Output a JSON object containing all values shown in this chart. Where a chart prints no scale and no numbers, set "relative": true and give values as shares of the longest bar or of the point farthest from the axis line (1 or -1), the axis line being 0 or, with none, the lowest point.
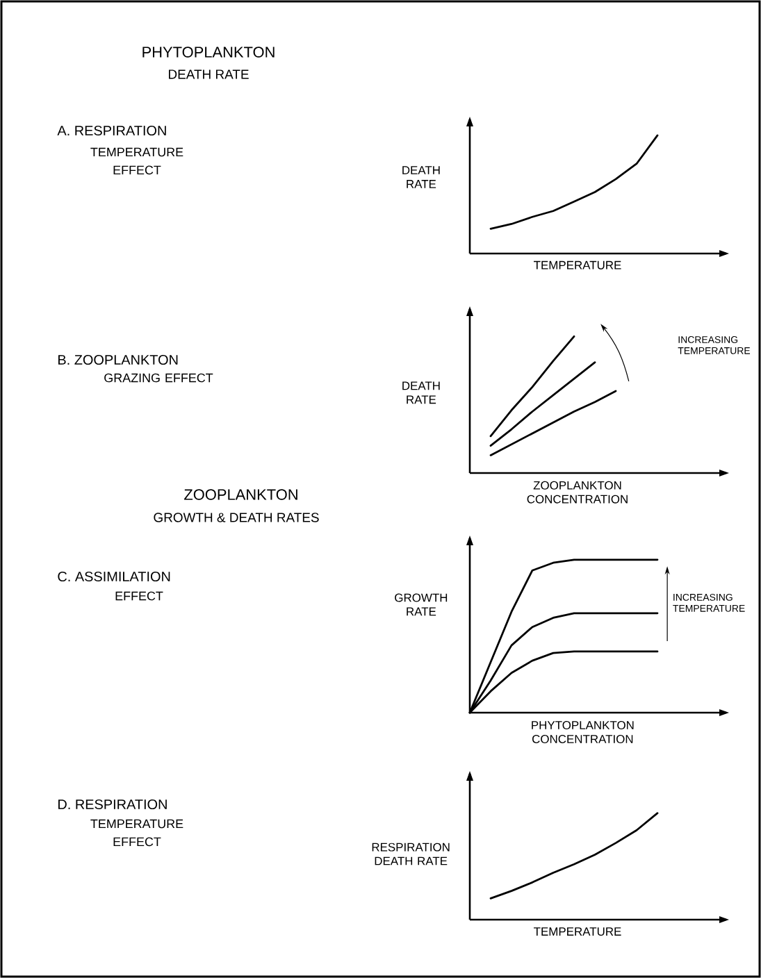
{
  "chart_data": [
    {
      "type": "line",
      "relative": true,
      "tick_labels": false,
      "xlabel": "TEMPERATURE",
      "ylabel": "DEATH RATE",
      "annotations": [
        "PHYTOPLANKTON",
        "DEATH RATE",
        "A. RESPIRATION",
        "TEMPERATURE EFFECT"
      ],
      "categories": [
        null,
        null,
        null,
        null,
        null,
        null,
        null,
        null,
        null,
        null,
        null,
        null,
        null
      ],
      "series": [
        {
          "color": "#000000",
          "values": [
            null,
            0.21,
            0.25,
            0.31,
            0.36,
            0.44,
            0.52,
            0.63,
            0.76,
            1.0,
            null,
            null,
            null
          ]
        }
      ]
    },
    {
      "type": "line",
      "relative": true,
      "tick_labels": false,
      "xlabel": "ZOOPLANKTON CONCENTRATION",
      "ylabel": "DEATH RATE",
      "annotations": [
        "B. ZOOPLANKTON",
        "GRAZING EFFECT",
        "INCREASING TEMPERATURE"
      ],
      "categories": [
        null,
        null,
        null,
        null,
        null,
        null,
        null,
        null,
        null,
        null,
        null,
        null,
        null
      ],
      "series": [
        {
          "color": "#000000",
          "values": [
            null,
            0.27,
            0.46,
            0.63,
            0.82,
            1.0,
            null,
            null,
            null,
            null,
            null,
            null,
            null
          ]
        },
        {
          "color": "#000000",
          "values": [
            null,
            0.2,
            0.32,
            0.45,
            0.57,
            0.69,
            0.81,
            null,
            null,
            null,
            null,
            null,
            null
          ]
        },
        {
          "color": "#000000",
          "values": [
            null,
            0.13,
            0.21,
            0.29,
            0.37,
            0.45,
            0.52,
            0.6,
            null,
            null,
            null,
            null,
            null
          ]
        }
      ]
    },
    {
      "type": "line",
      "relative": true,
      "tick_labels": false,
      "xlabel": "PHYTOPLANKTON CONCENTRATION",
      "ylabel": "GROWTH RATE",
      "annotations": [
        "ZOOPLANKTON",
        "GROWTH & DEATH RATES",
        "C. ASSIMILATION",
        "EFFECT",
        "INCREASING TEMPERATURE"
      ],
      "categories": [
        null,
        null,
        null,
        null,
        null,
        null,
        null,
        null,
        null,
        null,
        null,
        null,
        null
      ],
      "series": [
        {
          "color": "#000000",
          "values": [
            0,
            0.33,
            0.66,
            0.93,
            0.98,
            1.0,
            1.0,
            1.0,
            1.0,
            1.0,
            null,
            null,
            null
          ]
        },
        {
          "color": "#000000",
          "values": [
            0,
            0.21,
            0.44,
            0.56,
            0.62,
            0.65,
            0.65,
            0.65,
            0.65,
            0.65,
            null,
            null,
            null
          ]
        },
        {
          "color": "#000000",
          "values": [
            0,
            0.14,
            0.26,
            0.34,
            0.39,
            0.4,
            0.4,
            0.4,
            0.4,
            0.4,
            null,
            null,
            null
          ]
        }
      ]
    },
    {
      "type": "line",
      "relative": true,
      "tick_labels": false,
      "xlabel": "TEMPERATURE",
      "ylabel": "RESPIRATION DEATH RATE",
      "annotations": [
        "D. RESPIRATION",
        "TEMPERATURE EFFECT"
      ],
      "categories": [
        null,
        null,
        null,
        null,
        null,
        null,
        null,
        null,
        null,
        null,
        null,
        null,
        null
      ],
      "series": [
        {
          "color": "#000000",
          "values": [
            null,
            0.2,
            0.27,
            0.35,
            0.44,
            0.52,
            0.61,
            0.72,
            0.84,
            1.0,
            null,
            null,
            null
          ]
        }
      ]
    }
  ]
}
